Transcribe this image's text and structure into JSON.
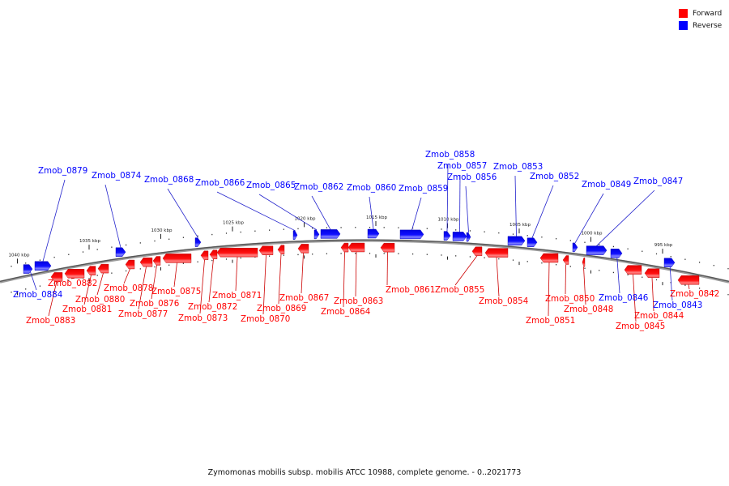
{
  "legend": {
    "forward_label": "Forward",
    "reverse_label": "Reverse",
    "forward_color": "#ff0000",
    "reverse_color": "#0000ff"
  },
  "caption": "Zymomonas mobilis subsp. mobilis ATCC 10988, complete genome. - 0..2021773",
  "diagram_data": {
    "type": "circular-genome-map-arc",
    "ticks": [
      {
        "kbp": 1040,
        "label": "1040 kbp"
      },
      {
        "kbp": 1035,
        "label": "1035 kbp"
      },
      {
        "kbp": 1030,
        "label": "1030 kbp"
      },
      {
        "kbp": 1025,
        "label": "1025 kbp"
      },
      {
        "kbp": 1020,
        "label": "1020 kbp"
      },
      {
        "kbp": 1015,
        "label": "1015 kbp"
      },
      {
        "kbp": 1010,
        "label": "1010 kbp"
      },
      {
        "kbp": 1005,
        "label": "1005 kbp"
      },
      {
        "kbp": 1000,
        "label": "1000 kbp"
      },
      {
        "kbp": 995,
        "label": "995 kbp"
      }
    ],
    "genes": [
      {
        "name": "Zmob_0884",
        "strand": "reverse"
      },
      {
        "name": "Zmob_0883",
        "strand": "forward"
      },
      {
        "name": "Zmob_0882",
        "strand": "forward"
      },
      {
        "name": "Zmob_0881",
        "strand": "forward"
      },
      {
        "name": "Zmob_0880",
        "strand": "forward"
      },
      {
        "name": "Zmob_0879",
        "strand": "reverse"
      },
      {
        "name": "Zmob_0878",
        "strand": "forward"
      },
      {
        "name": "Zmob_0877",
        "strand": "forward"
      },
      {
        "name": "Zmob_0876",
        "strand": "forward"
      },
      {
        "name": "Zmob_0875",
        "strand": "forward"
      },
      {
        "name": "Zmob_0874",
        "strand": "reverse"
      },
      {
        "name": "Zmob_0873",
        "strand": "forward"
      },
      {
        "name": "Zmob_0872",
        "strand": "forward"
      },
      {
        "name": "Zmob_0871",
        "strand": "forward"
      },
      {
        "name": "Zmob_0870",
        "strand": "forward"
      },
      {
        "name": "Zmob_0869",
        "strand": "forward"
      },
      {
        "name": "Zmob_0868",
        "strand": "reverse"
      },
      {
        "name": "Zmob_0867",
        "strand": "forward"
      },
      {
        "name": "Zmob_0866",
        "strand": "reverse"
      },
      {
        "name": "Zmob_0865",
        "strand": "reverse"
      },
      {
        "name": "Zmob_0864",
        "strand": "forward"
      },
      {
        "name": "Zmob_0863",
        "strand": "forward"
      },
      {
        "name": "Zmob_0862",
        "strand": "reverse"
      },
      {
        "name": "Zmob_0861",
        "strand": "forward"
      },
      {
        "name": "Zmob_0860",
        "strand": "reverse"
      },
      {
        "name": "Zmob_0859",
        "strand": "reverse"
      },
      {
        "name": "Zmob_0858",
        "strand": "reverse"
      },
      {
        "name": "Zmob_0857",
        "strand": "reverse"
      },
      {
        "name": "Zmob_0856",
        "strand": "reverse"
      },
      {
        "name": "Zmob_0855",
        "strand": "forward"
      },
      {
        "name": "Zmob_0854",
        "strand": "forward"
      },
      {
        "name": "Zmob_0853",
        "strand": "reverse"
      },
      {
        "name": "Zmob_0852",
        "strand": "reverse"
      },
      {
        "name": "Zmob_0851",
        "strand": "forward"
      },
      {
        "name": "Zmob_0850",
        "strand": "forward"
      },
      {
        "name": "Zmob_0849",
        "strand": "reverse"
      },
      {
        "name": "Zmob_0848",
        "strand": "forward"
      },
      {
        "name": "Zmob_0847",
        "strand": "reverse"
      },
      {
        "name": "Zmob_0846",
        "strand": "reverse"
      },
      {
        "name": "Zmob_0845",
        "strand": "forward"
      },
      {
        "name": "Zmob_0844",
        "strand": "forward"
      },
      {
        "name": "Zmob_0843",
        "strand": "reverse"
      },
      {
        "name": "Zmob_0842",
        "strand": "forward"
      }
    ]
  }
}
